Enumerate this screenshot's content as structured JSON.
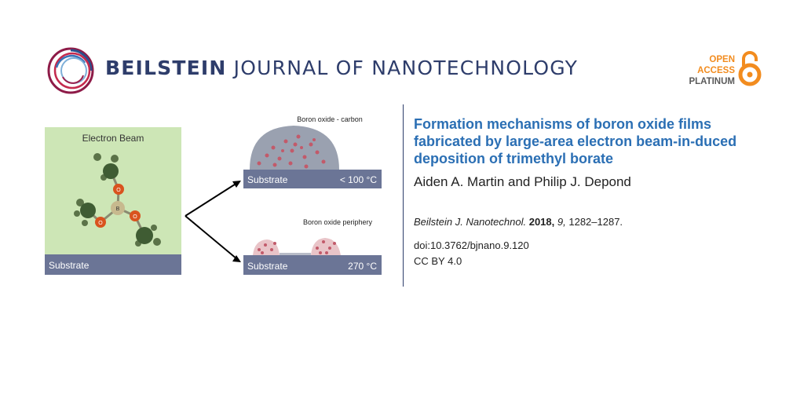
{
  "header": {
    "journal_name_bold": "BEILSTEIN",
    "journal_name_rest": " JOURNAL OF NANOTECHNOLOGY",
    "logo_icon": "beilstein-ring-logo",
    "open_access": {
      "line1": "OPEN",
      "line2": "ACCESS",
      "line3": "PLATINUM",
      "icon": "open-lock-icon"
    }
  },
  "figure": {
    "left_panel": {
      "beam_label": "Electron Beam",
      "substrate_label": "Substrate",
      "atom_labels": {
        "oxygen": "O",
        "boron": "B"
      }
    },
    "top_result": {
      "caption": "Boron oxide - carbon",
      "substrate_label": "Substrate",
      "temperature": "< 100 °C"
    },
    "bottom_result": {
      "caption": "Boron oxide periphery",
      "substrate_label": "Substrate",
      "temperature": "270 °C"
    }
  },
  "article": {
    "title": "Formation mechanisms of boron oxide films fabricated by large-area electron beam-in-duced deposition of trimethyl borate",
    "authors": "Aiden A. Martin and Philip J. Depond",
    "citation": {
      "journal": "Beilstein J. Nanotechnol.",
      "year": "2018,",
      "volume": "9,",
      "pages": "1282–1287."
    },
    "doi": "doi:10.3762/bjnano.9.120",
    "license": "CC BY 4.0"
  },
  "colors": {
    "navy": "#2e3d6b",
    "title_blue": "#2b6fb4",
    "oa_orange": "#f28c1f",
    "beam_green": "#cde6b6",
    "substrate": "#6b7596",
    "oxygen_red": "#d9531e"
  }
}
